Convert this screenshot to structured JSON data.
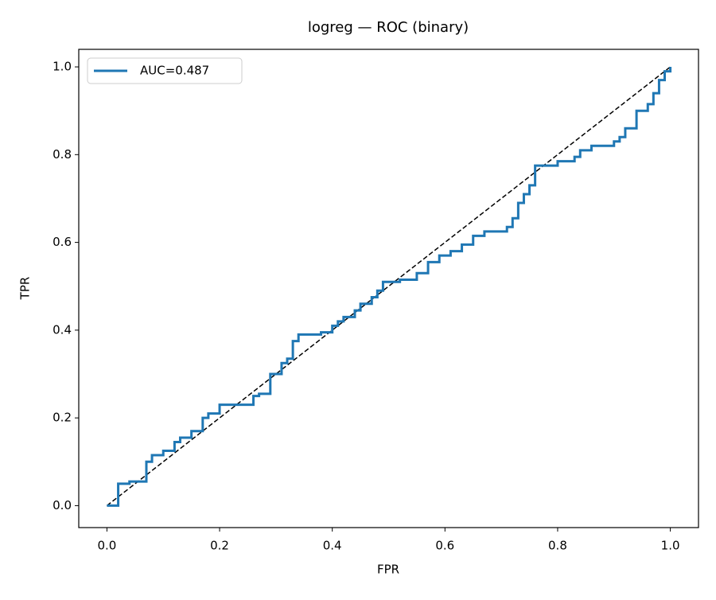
{
  "chart_data": {
    "type": "line",
    "title": "logreg — ROC (binary)",
    "x_label": "FPR",
    "y_label": "TPR",
    "xlim": [
      -0.05,
      1.05
    ],
    "ylim": [
      -0.05,
      1.04
    ],
    "xticks": [
      {
        "value": 0,
        "label": "0.0"
      },
      0.2,
      0.4,
      0.6,
      0.8,
      {
        "value": 1,
        "label": "1.0"
      }
    ],
    "yticks": [
      {
        "value": 0,
        "label": "0.0"
      },
      0.2,
      0.4,
      0.6,
      0.8,
      {
        "value": 1,
        "label": "1.0"
      }
    ],
    "grid": false,
    "legend": "upper left",
    "series": [
      {
        "name": "AUC=0.487",
        "color": "#1f77b4",
        "x": [
          0,
          0.02,
          0.02,
          0.04,
          0.04,
          0.07,
          0.07,
          0.08,
          0.08,
          0.1,
          0.1,
          0.12,
          0.12,
          0.13,
          0.13,
          0.15,
          0.15,
          0.17,
          0.17,
          0.18,
          0.18,
          0.2,
          0.2,
          0.26,
          0.26,
          0.27,
          0.27,
          0.29,
          0.29,
          0.31,
          0.31,
          0.32,
          0.32,
          0.33,
          0.33,
          0.34,
          0.34,
          0.38,
          0.38,
          0.4,
          0.4,
          0.41,
          0.41,
          0.42,
          0.42,
          0.44,
          0.44,
          0.45,
          0.45,
          0.47,
          0.47,
          0.48,
          0.48,
          0.49,
          0.49,
          0.52,
          0.52,
          0.55,
          0.55,
          0.57,
          0.57,
          0.59,
          0.59,
          0.61,
          0.61,
          0.63,
          0.63,
          0.65,
          0.65,
          0.67,
          0.67,
          0.71,
          0.71,
          0.72,
          0.72,
          0.73,
          0.73,
          0.74,
          0.74,
          0.75,
          0.75,
          0.76,
          0.76,
          0.8,
          0.8,
          0.83,
          0.83,
          0.84,
          0.84,
          0.86,
          0.86,
          0.9,
          0.9,
          0.91,
          0.91,
          0.92,
          0.92,
          0.94,
          0.94,
          0.96,
          0.96,
          0.97,
          0.97,
          0.98,
          0.98,
          0.99,
          0.99,
          1,
          1
        ],
        "values": [
          0,
          0,
          0.05,
          0.05,
          0.055,
          0.055,
          0.1,
          0.1,
          0.115,
          0.115,
          0.125,
          0.125,
          0.145,
          0.145,
          0.155,
          0.155,
          0.17,
          0.17,
          0.2,
          0.2,
          0.21,
          0.21,
          0.23,
          0.23,
          0.25,
          0.25,
          0.255,
          0.255,
          0.3,
          0.3,
          0.325,
          0.325,
          0.335,
          0.335,
          0.375,
          0.375,
          0.39,
          0.39,
          0.395,
          0.395,
          0.41,
          0.41,
          0.42,
          0.42,
          0.43,
          0.43,
          0.445,
          0.445,
          0.46,
          0.46,
          0.475,
          0.475,
          0.49,
          0.49,
          0.51,
          0.51,
          0.515,
          0.515,
          0.53,
          0.53,
          0.555,
          0.555,
          0.57,
          0.57,
          0.58,
          0.58,
          0.595,
          0.595,
          0.615,
          0.615,
          0.625,
          0.625,
          0.635,
          0.635,
          0.655,
          0.655,
          0.69,
          0.69,
          0.71,
          0.71,
          0.73,
          0.73,
          0.775,
          0.775,
          0.785,
          0.785,
          0.795,
          0.795,
          0.81,
          0.81,
          0.82,
          0.82,
          0.83,
          0.83,
          0.84,
          0.84,
          0.86,
          0.86,
          0.9,
          0.9,
          0.915,
          0.915,
          0.94,
          0.94,
          0.97,
          0.97,
          0.99,
          0.99,
          1
        ]
      },
      {
        "color": "#000000",
        "dashed": true,
        "x": [
          0,
          1
        ],
        "values": [
          0,
          1
        ]
      }
    ]
  }
}
